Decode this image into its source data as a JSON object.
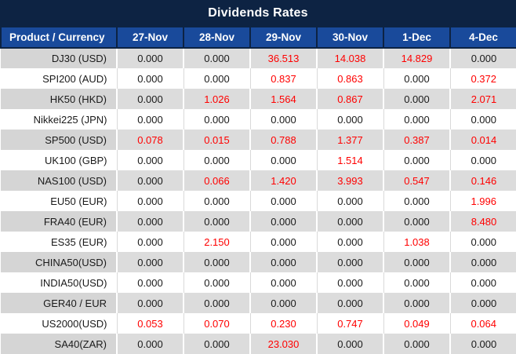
{
  "title": "Dividends Rates",
  "colors": {
    "title_bar_bg": "#0d2343",
    "header_bg": "#194a9b",
    "header_text": "#ffffff",
    "row_gray_bg": "#dcdcdc",
    "row_white_bg": "#ffffff",
    "value_text": "#1a1a1a",
    "highlight_text": "#ff0000"
  },
  "chart_data": {
    "type": "table",
    "title": "Dividends Rates",
    "columns": [
      "Product / Currency",
      "27-Nov",
      "28-Nov",
      "29-Nov",
      "30-Nov",
      "1-Dec",
      "4-Dec"
    ],
    "rows": [
      {
        "product": "DJ30 (USD)",
        "values": [
          "0.000",
          "0.000",
          "36.513",
          "14.038",
          "14.829",
          "0.000"
        ],
        "highlighted": [
          false,
          false,
          true,
          true,
          true,
          false
        ]
      },
      {
        "product": "SPI200 (AUD)",
        "values": [
          "0.000",
          "0.000",
          "0.837",
          "0.863",
          "0.000",
          "0.372"
        ],
        "highlighted": [
          false,
          false,
          true,
          true,
          false,
          true
        ]
      },
      {
        "product": "HK50 (HKD)",
        "values": [
          "0.000",
          "1.026",
          "1.564",
          "0.867",
          "0.000",
          "2.071"
        ],
        "highlighted": [
          false,
          true,
          true,
          true,
          false,
          true
        ]
      },
      {
        "product": "Nikkei225 (JPN)",
        "values": [
          "0.000",
          "0.000",
          "0.000",
          "0.000",
          "0.000",
          "0.000"
        ],
        "highlighted": [
          false,
          false,
          false,
          false,
          false,
          false
        ]
      },
      {
        "product": "SP500 (USD)",
        "values": [
          "0.078",
          "0.015",
          "0.788",
          "1.377",
          "0.387",
          "0.014"
        ],
        "highlighted": [
          true,
          true,
          true,
          true,
          true,
          true
        ]
      },
      {
        "product": "UK100 (GBP)",
        "values": [
          "0.000",
          "0.000",
          "0.000",
          "1.514",
          "0.000",
          "0.000"
        ],
        "highlighted": [
          false,
          false,
          false,
          true,
          false,
          false
        ]
      },
      {
        "product": "NAS100 (USD)",
        "values": [
          "0.000",
          "0.066",
          "1.420",
          "3.993",
          "0.547",
          "0.146"
        ],
        "highlighted": [
          false,
          true,
          true,
          true,
          true,
          true
        ]
      },
      {
        "product": "EU50 (EUR)",
        "values": [
          "0.000",
          "0.000",
          "0.000",
          "0.000",
          "0.000",
          "1.996"
        ],
        "highlighted": [
          false,
          false,
          false,
          false,
          false,
          true
        ]
      },
      {
        "product": "FRA40 (EUR)",
        "values": [
          "0.000",
          "0.000",
          "0.000",
          "0.000",
          "0.000",
          "8.480"
        ],
        "highlighted": [
          false,
          false,
          false,
          false,
          false,
          true
        ]
      },
      {
        "product": "ES35 (EUR)",
        "values": [
          "0.000",
          "2.150",
          "0.000",
          "0.000",
          "1.038",
          "0.000"
        ],
        "highlighted": [
          false,
          true,
          false,
          false,
          true,
          false
        ]
      },
      {
        "product": "CHINA50(USD)",
        "values": [
          "0.000",
          "0.000",
          "0.000",
          "0.000",
          "0.000",
          "0.000"
        ],
        "highlighted": [
          false,
          false,
          false,
          false,
          false,
          false
        ]
      },
      {
        "product": "INDIA50(USD)",
        "values": [
          "0.000",
          "0.000",
          "0.000",
          "0.000",
          "0.000",
          "0.000"
        ],
        "highlighted": [
          false,
          false,
          false,
          false,
          false,
          false
        ]
      },
      {
        "product": "GER40 / EUR",
        "values": [
          "0.000",
          "0.000",
          "0.000",
          "0.000",
          "0.000",
          "0.000"
        ],
        "highlighted": [
          false,
          false,
          false,
          false,
          false,
          false
        ]
      },
      {
        "product": "US2000(USD)",
        "values": [
          "0.053",
          "0.070",
          "0.230",
          "0.747",
          "0.049",
          "0.064"
        ],
        "highlighted": [
          true,
          true,
          true,
          true,
          true,
          true
        ]
      },
      {
        "product": "SA40(ZAR)",
        "values": [
          "0.000",
          "0.000",
          "23.030",
          "0.000",
          "0.000",
          "0.000"
        ],
        "highlighted": [
          false,
          false,
          true,
          false,
          false,
          false
        ]
      }
    ]
  }
}
